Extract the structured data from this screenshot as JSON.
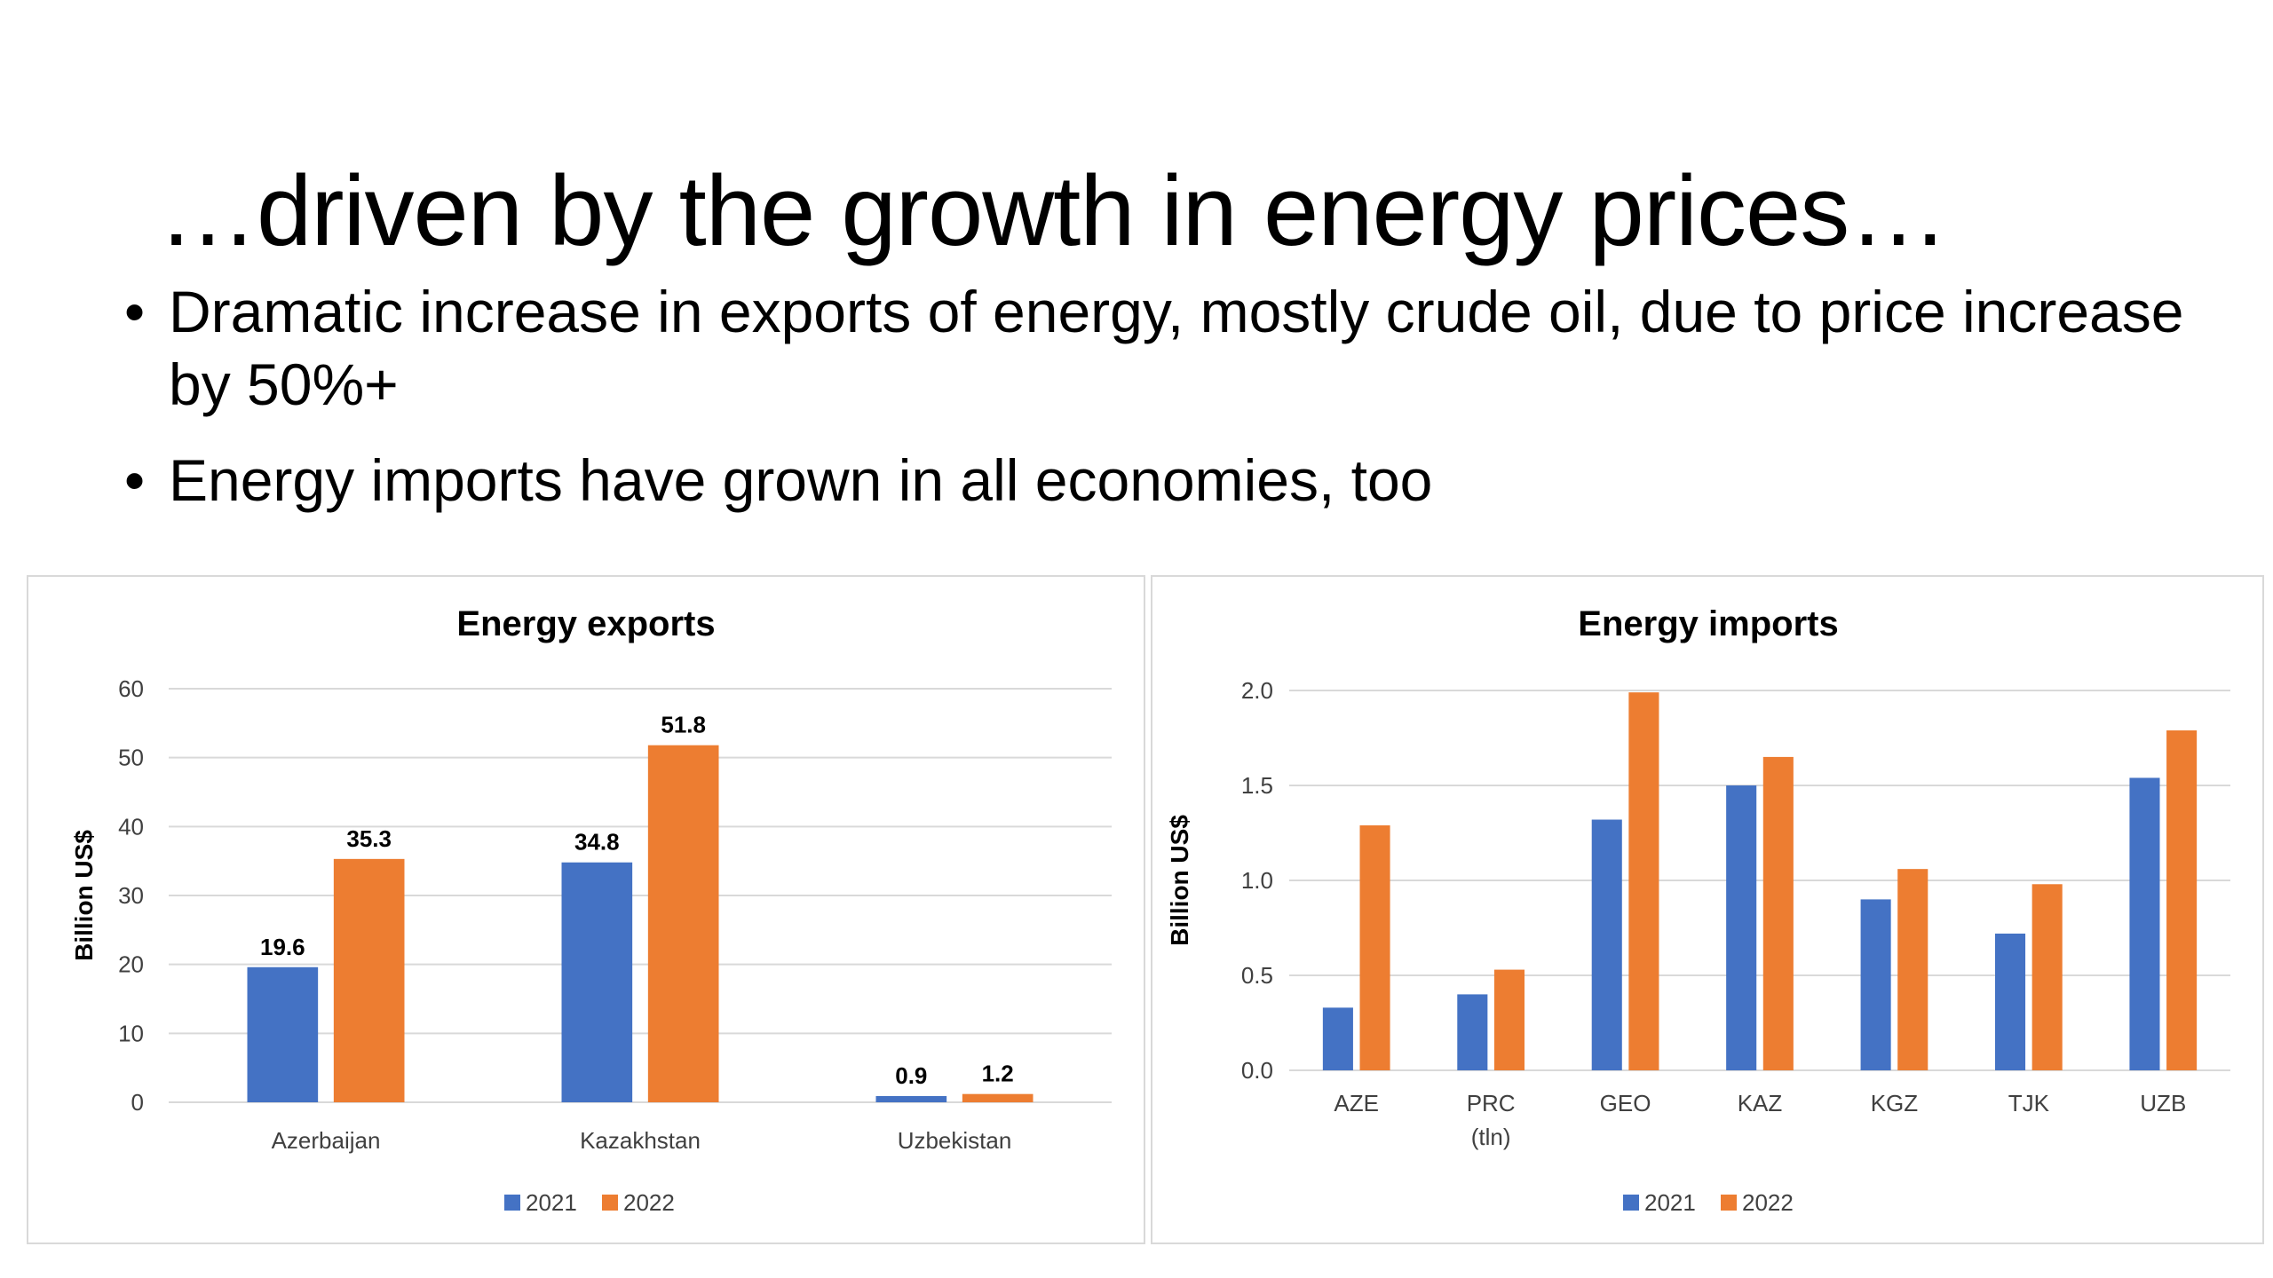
{
  "slide": {
    "title": "…driven by the growth in energy prices…",
    "bullets": [
      "Dramatic increase in exports of energy, mostly crude oil, due to price increase by 50%+",
      "Energy imports have grown in all economies, too"
    ],
    "bullet_symbol": "•"
  },
  "colors": {
    "series_2021": "#4472C4",
    "series_2022": "#ED7D31",
    "grid": "#d9d9d9"
  },
  "chart_data": [
    {
      "type": "bar",
      "title": "Energy exports",
      "xlabel": "",
      "ylabel": "Billion US$",
      "ylim": [
        0,
        60
      ],
      "yticks": [
        "0",
        "10",
        "20",
        "30",
        "40",
        "50",
        "60"
      ],
      "categories": [
        "Azerbaijan",
        "Kazakhstan",
        "Uzbekistan"
      ],
      "series": [
        {
          "name": "2021",
          "values": [
            19.6,
            34.8,
            0.9
          ],
          "labels": [
            "19.6",
            "34.8",
            "0.9"
          ]
        },
        {
          "name": "2022",
          "values": [
            35.3,
            51.8,
            1.2
          ],
          "labels": [
            "35.3",
            "51.8",
            "1.2"
          ]
        }
      ],
      "grid": true,
      "legend": "bottom-center",
      "data_labels": true
    },
    {
      "type": "bar",
      "title": "Energy imports",
      "xlabel": "",
      "ylabel": "Billion US$",
      "ylim": [
        0,
        2.0
      ],
      "yticks": [
        "0.0",
        "0.5",
        "1.0",
        "1.5",
        "2.0"
      ],
      "categories": [
        [
          "AZE"
        ],
        [
          "PRC",
          "(tln)"
        ],
        [
          "GEO"
        ],
        [
          "KAZ"
        ],
        [
          "KGZ"
        ],
        [
          "TJK"
        ],
        [
          "UZB"
        ]
      ],
      "series": [
        {
          "name": "2021",
          "values": [
            0.33,
            0.4,
            1.32,
            1.5,
            0.9,
            0.72,
            1.54
          ]
        },
        {
          "name": "2022",
          "values": [
            1.29,
            0.53,
            1.99,
            1.65,
            1.06,
            0.98,
            1.79
          ]
        }
      ],
      "grid": true,
      "legend": "bottom-center",
      "data_labels": false
    }
  ]
}
